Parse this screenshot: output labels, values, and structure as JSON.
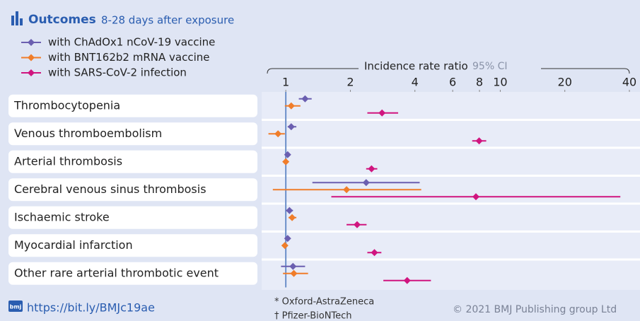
{
  "chart_data": {
    "type": "forest",
    "title": "Outcomes",
    "subtitle": "8-28 days after exposure",
    "x_label": "Incidence rate ratio",
    "ci_label": "95% CI",
    "log_x": true,
    "xlim": [
      0.82,
      40
    ],
    "xticks": [
      1,
      2,
      4,
      6,
      8,
      10,
      20,
      40
    ],
    "reference": 1,
    "categories": [
      "Thrombocytopenia",
      "Venous thromboembolism",
      "Arterial thrombosis",
      "Cerebral venous sinus thrombosis",
      "Ischaemic stroke",
      "Myocardial infarction",
      "Other rare arterial thrombotic event"
    ],
    "series": [
      {
        "name": "with ChAdOx1 nCoV-19 vaccine",
        "color": "#6b5fb0",
        "values": [
          1.23,
          1.06,
          1.02,
          2.37,
          1.04,
          1.02,
          1.08
        ],
        "ci_low": [
          1.15,
          1.02,
          0.99,
          1.33,
          1.0,
          0.99,
          0.95
        ],
        "ci_high": [
          1.32,
          1.12,
          1.04,
          4.21,
          1.08,
          1.04,
          1.23
        ]
      },
      {
        "name": "with BNT162b2 mRNA vaccine",
        "color": "#f07d2a",
        "values": [
          1.06,
          0.92,
          1.0,
          1.92,
          1.07,
          0.99,
          1.09
        ],
        "ci_low": [
          0.99,
          0.83,
          0.98,
          0.87,
          1.03,
          0.97,
          0.97
        ],
        "ci_high": [
          1.17,
          0.99,
          1.02,
          4.28,
          1.12,
          1.02,
          1.27
        ]
      },
      {
        "name": "with SARS-CoV-2 infection",
        "color": "#d0157f",
        "values": [
          2.81,
          7.97,
          2.51,
          7.7,
          2.15,
          2.59,
          3.68
        ],
        "ci_low": [
          2.4,
          7.4,
          2.37,
          1.63,
          1.92,
          2.4,
          2.85
        ],
        "ci_high": [
          3.34,
          8.6,
          2.67,
          36.3,
          2.38,
          2.79,
          4.75
        ]
      }
    ]
  },
  "footer": {
    "link": "https://bit.ly/BMJc19ae",
    "icon": "bmj",
    "notes": [
      "* Oxford-AstraZeneca",
      "† Pfizer-BioNTech"
    ],
    "copyright": "© 2021 BMJ Publishing group Ltd"
  }
}
